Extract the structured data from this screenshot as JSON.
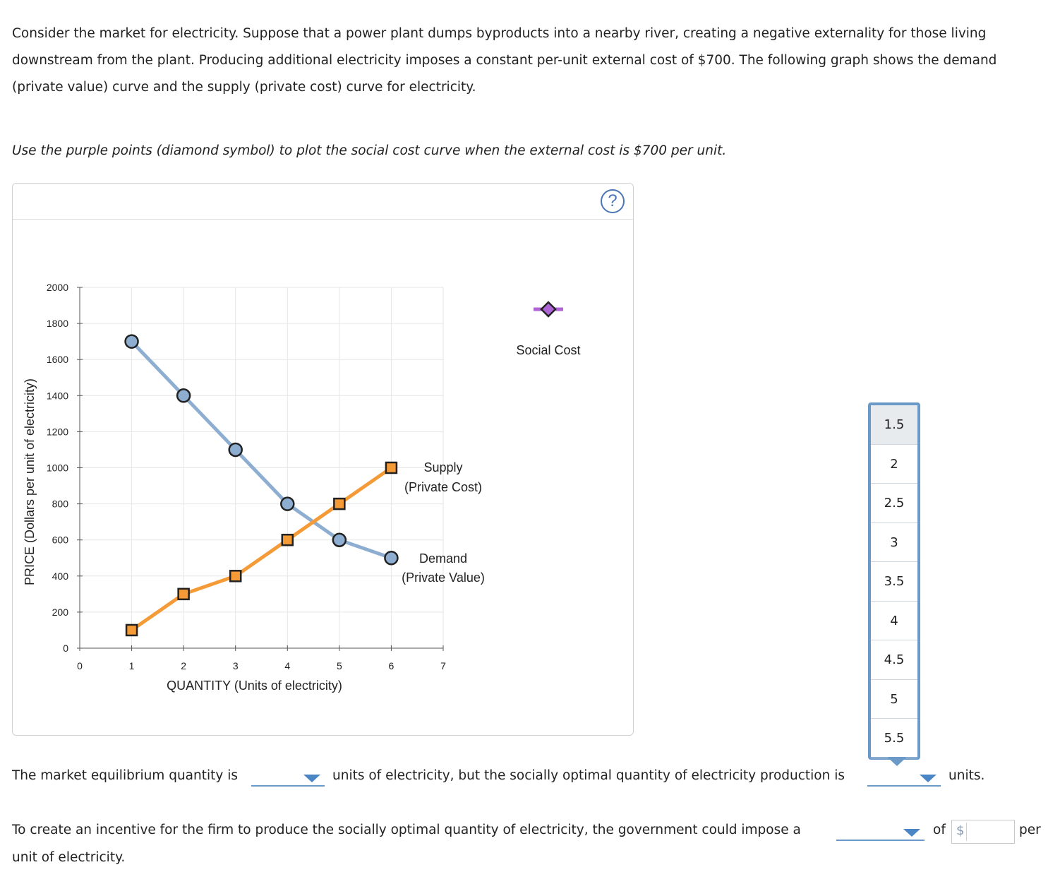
{
  "question": {
    "intro": "Consider the market for electricity. Suppose that a power plant dumps byproducts into a nearby river, creating a negative externality for those living downstream from the plant. Producing additional electricity imposes a constant per-unit external cost of $700. The following graph shows the demand (private value) curve and the supply (private cost) curve for electricity.",
    "instruction": "Use the purple points (diamond symbol) to plot the social cost curve when the external cost is $700 per unit."
  },
  "graph": {
    "help_symbol": "?",
    "palette_label": "Social Cost",
    "supply_label_line1": "Supply",
    "supply_label_line2": "(Private Cost)",
    "demand_label_line1": "Demand",
    "demand_label_line2": "(Private Value)"
  },
  "chart_data": {
    "type": "line",
    "title": "",
    "xlabel": "QUANTITY (Units of electricity)",
    "ylabel": "PRICE (Dollars per unit of electricity)",
    "xlim": [
      0,
      7
    ],
    "ylim": [
      0,
      2000
    ],
    "x_ticks": [
      0,
      1,
      2,
      3,
      4,
      5,
      6,
      7
    ],
    "y_ticks": [
      0,
      200,
      400,
      600,
      800,
      1000,
      1200,
      1400,
      1600,
      1800,
      2000
    ],
    "grid": true,
    "series": [
      {
        "name": "Demand (Private Value)",
        "marker": "circle",
        "color": "#8eaed1",
        "x": [
          1,
          2,
          3,
          4,
          5,
          6
        ],
        "y": [
          1700,
          1400,
          1100,
          800,
          600,
          500
        ]
      },
      {
        "name": "Supply (Private Cost)",
        "marker": "square",
        "color": "#f49a37",
        "x": [
          1,
          2,
          3,
          4,
          5,
          6
        ],
        "y": [
          100,
          300,
          400,
          600,
          800,
          1000
        ]
      }
    ]
  },
  "dropdown": {
    "options": [
      "1.5",
      "2",
      "2.5",
      "3",
      "3.5",
      "4",
      "4.5",
      "5",
      "5.5"
    ],
    "highlighted": "1.5"
  },
  "answers": {
    "eq_prefix": "The market equilibrium quantity is",
    "eq_middle": "units of electricity, but the socially optimal quantity of electricity production is",
    "eq_suffix": "units.",
    "incentive_prefix": "To create an incentive for the firm to produce the socially optimal quantity of electricity, the government could impose a",
    "incentive_of": "of",
    "currency_symbol": "$",
    "incentive_per": "per",
    "incentive_end": "unit of electricity."
  },
  "colors": {
    "demand": "#8eaed1",
    "supply": "#f49a37",
    "social_cost": "#b065d6",
    "accent": "#4a86c5"
  }
}
